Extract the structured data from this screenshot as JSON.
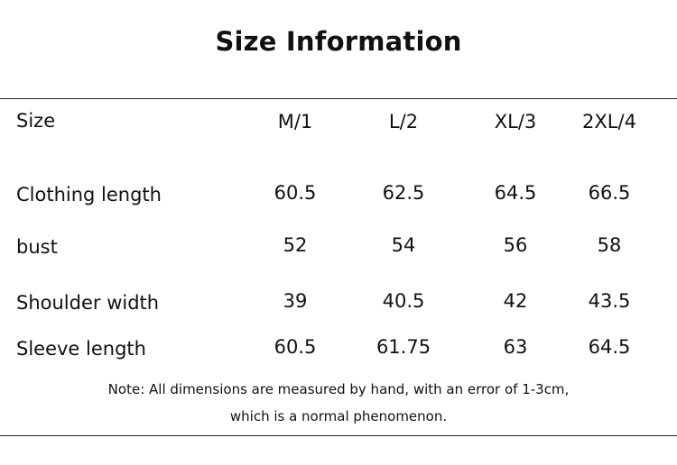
{
  "header": {
    "title": "Size Information"
  },
  "table": {
    "columns": [
      "Size",
      "M/1",
      "L/2",
      "XL/3",
      "2XL/4"
    ],
    "rows": [
      [
        "Clothing length",
        "60.5",
        "62.5",
        "64.5",
        "66.5"
      ],
      [
        "bust",
        "52",
        "54",
        "56",
        "58"
      ],
      [
        "Shoulder width",
        "39",
        "40.5",
        "42",
        "43.5"
      ],
      [
        "Sleeve length",
        "60.5",
        "61.75",
        "63",
        "64.5"
      ]
    ]
  },
  "note": [
    "Note: All dimensions are measured by hand, with an error of 1-3cm,",
    "which is a normal phenomenon."
  ]
}
